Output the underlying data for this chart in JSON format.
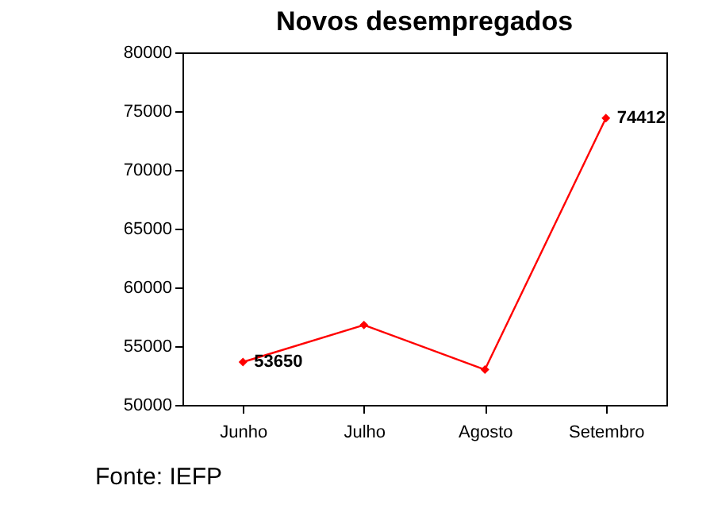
{
  "chart_data": {
    "type": "line",
    "title": "Novos desempregados",
    "categories": [
      "Junho",
      "Julho",
      "Agosto",
      "Setembro"
    ],
    "series": [
      {
        "color": "#ff0000",
        "values": [
          53650,
          56800,
          53000,
          74412
        ],
        "value_labels": [
          "53650",
          null,
          null,
          "74412"
        ]
      }
    ],
    "ylim": [
      50000,
      80000
    ],
    "yticks": [
      50000,
      55000,
      60000,
      65000,
      70000,
      75000,
      80000
    ],
    "marker": "diamond",
    "line_style": "solid",
    "grid": false,
    "annotations": [
      "Fonte: IEFP"
    ]
  }
}
